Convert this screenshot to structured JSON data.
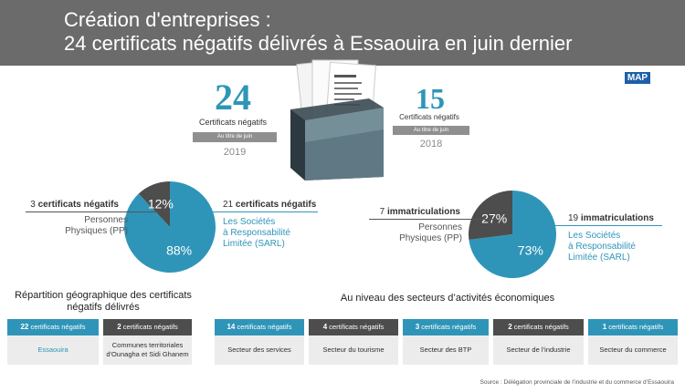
{
  "header": {
    "title_line1": "Création d'entreprises :",
    "title_line2": "24 certificats négatifs délivrés à Essaouira en juin dernier",
    "logo_text": "MAP"
  },
  "stats": [
    {
      "value": "24",
      "label": "Certificats négatifs",
      "period": "Au titre de juin",
      "year": "2019"
    },
    {
      "value": "15",
      "label": "Certificats négatifs",
      "period": "Au titre de juin",
      "year": "2018"
    }
  ],
  "colors": {
    "accent": "#2f95b8",
    "dark": "#4d4d4d",
    "header_bg": "#6b6b6b"
  },
  "chart_data": [
    {
      "type": "pie",
      "slices": [
        {
          "name": "Les Sociétés à Responsabilité Limitée (SARL)",
          "value": 88,
          "label": "88%",
          "color": "#2f95b8"
        },
        {
          "name": "Personnes Physiques (PP)",
          "value": 12,
          "label": "12%",
          "color": "#4d4d4d"
        }
      ],
      "annotations": {
        "left_count": "3",
        "left_unit": "certificats négatifs",
        "left_line1": "Personnes",
        "left_line2": "Physiques (PP)",
        "right_count": "21",
        "right_unit": "certificats négatifs",
        "right_line1": "Les Sociétés",
        "right_line2": "à Responsabilité",
        "right_line3": "Limitée (SARL)"
      }
    },
    {
      "type": "pie",
      "slices": [
        {
          "name": "Les Sociétés à Responsabilité Limitée (SARL)",
          "value": 73,
          "label": "73%",
          "color": "#2f95b8"
        },
        {
          "name": "Personnes Physiques (PP)",
          "value": 27,
          "label": "27%",
          "color": "#4d4d4d"
        }
      ],
      "annotations": {
        "left_count": "7",
        "left_unit": "immatriculations",
        "left_line1": "Personnes",
        "left_line2": "Physiques (PP)",
        "right_count": "19",
        "right_unit": "immatriculations",
        "right_line1": "Les Sociétés",
        "right_line2": "à Responsabilité",
        "right_line3": "Limitée (SARL)"
      }
    },
    {
      "type": "table",
      "title": "Répartition géographique des certificats négatifs délivrés",
      "rows": [
        {
          "count": "22",
          "unit": "certificats négatifs",
          "line1": "Essaouira",
          "line2": ""
        },
        {
          "count": "2",
          "unit": "certificats négatifs",
          "line1": "Communes territoriales",
          "line2": "d'Ounagha et Sidi Ghanem"
        }
      ]
    },
    {
      "type": "table",
      "title": "Au niveau des secteurs d’activités économiques",
      "rows": [
        {
          "count": "14",
          "unit": "certificats négatifs",
          "sector": "Secteur des services"
        },
        {
          "count": "4",
          "unit": "certificats négatifs",
          "sector": "Secteur du tourisme"
        },
        {
          "count": "3",
          "unit": "certificats négatifs",
          "sector": "Secteur des BTP"
        },
        {
          "count": "2",
          "unit": "certificats négatifs",
          "sector": "Secteur de l’industrie"
        },
        {
          "count": "1",
          "unit": "certificats négatifs",
          "sector": "Secteur du commerce"
        }
      ]
    }
  ],
  "source": "Source : Délégation provinciale de l’industrie et du commerce d’Essaouira"
}
